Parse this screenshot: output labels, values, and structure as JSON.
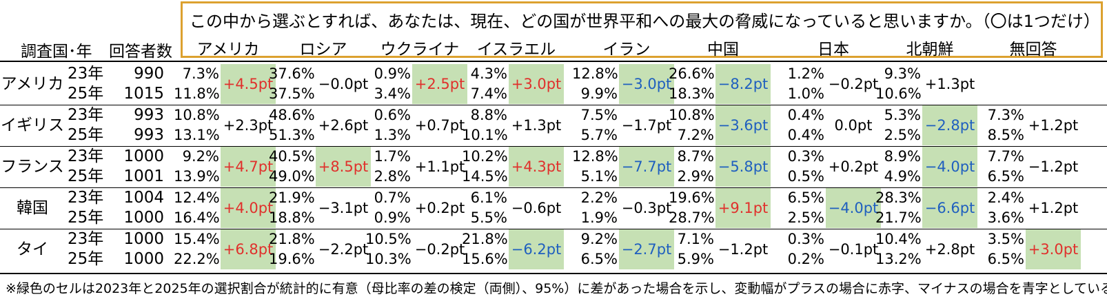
{
  "question": "この中から選ぶとすれば、あなたは、現在、どの国が世界平和への最大の脅威になっていると思いますか。（〇は1つだけ）",
  "headers": {
    "country_year": "調査国･年",
    "respondents": "回答者数"
  },
  "columns": [
    "アメリカ",
    "ロシア",
    "ウクライナ",
    "イスラエル",
    "イラン",
    "中国",
    "日本",
    "北朝鮮",
    "無回答"
  ],
  "rows": [
    {
      "country": "アメリカ",
      "years": [
        "23年",
        "25年"
      ],
      "counts": [
        "990",
        "1015"
      ],
      "cells": [
        {
          "v23": "7.3%",
          "v25": "11.8%",
          "change": "+4.5pt",
          "sig": true,
          "dir": "up"
        },
        {
          "v23": "37.6%",
          "v25": "37.5%",
          "change": "−0.0pt",
          "sig": false,
          "dir": "neutral"
        },
        {
          "v23": "0.9%",
          "v25": "3.4%",
          "change": "+2.5pt",
          "sig": true,
          "dir": "up"
        },
        {
          "v23": "4.3%",
          "v25": "7.4%",
          "change": "+3.0pt",
          "sig": true,
          "dir": "up"
        },
        {
          "v23": "12.8%",
          "v25": "9.9%",
          "change": "−3.0pt",
          "sig": true,
          "dir": "down"
        },
        {
          "v23": "26.6%",
          "v25": "18.3%",
          "change": "−8.2pt",
          "sig": true,
          "dir": "down"
        },
        {
          "v23": "1.2%",
          "v25": "1.0%",
          "change": "−0.2pt",
          "sig": false,
          "dir": "neutral"
        },
        {
          "v23": "9.3%",
          "v25": "10.6%",
          "change": "+1.3pt",
          "sig": false,
          "dir": "neutral"
        },
        {
          "v23": "",
          "v25": "",
          "change": "",
          "sig": false,
          "dir": "neutral"
        }
      ]
    },
    {
      "country": "イギリス",
      "years": [
        "23年",
        "25年"
      ],
      "counts": [
        "993",
        "993"
      ],
      "cells": [
        {
          "v23": "10.8%",
          "v25": "13.1%",
          "change": "+2.3pt",
          "sig": false,
          "dir": "neutral"
        },
        {
          "v23": "48.6%",
          "v25": "51.3%",
          "change": "+2.6pt",
          "sig": false,
          "dir": "neutral"
        },
        {
          "v23": "0.6%",
          "v25": "1.3%",
          "change": "+0.7pt",
          "sig": false,
          "dir": "neutral"
        },
        {
          "v23": "8.8%",
          "v25": "10.1%",
          "change": "+1.3pt",
          "sig": false,
          "dir": "neutral"
        },
        {
          "v23": "7.5%",
          "v25": "5.7%",
          "change": "−1.7pt",
          "sig": false,
          "dir": "neutral"
        },
        {
          "v23": "10.8%",
          "v25": "7.2%",
          "change": "−3.6pt",
          "sig": true,
          "dir": "down"
        },
        {
          "v23": "0.4%",
          "v25": "0.4%",
          "change": "0.0pt",
          "sig": false,
          "dir": "neutral"
        },
        {
          "v23": "5.3%",
          "v25": "2.5%",
          "change": "−2.8pt",
          "sig": true,
          "dir": "down"
        },
        {
          "v23": "7.3%",
          "v25": "8.5%",
          "change": "+1.2pt",
          "sig": false,
          "dir": "neutral"
        }
      ]
    },
    {
      "country": "フランス",
      "years": [
        "23年",
        "25年"
      ],
      "counts": [
        "1000",
        "1001"
      ],
      "cells": [
        {
          "v23": "9.2%",
          "v25": "13.9%",
          "change": "+4.7pt",
          "sig": true,
          "dir": "up"
        },
        {
          "v23": "40.5%",
          "v25": "49.0%",
          "change": "+8.5pt",
          "sig": true,
          "dir": "up"
        },
        {
          "v23": "1.7%",
          "v25": "2.8%",
          "change": "+1.1pt",
          "sig": false,
          "dir": "neutral"
        },
        {
          "v23": "10.2%",
          "v25": "14.5%",
          "change": "+4.3pt",
          "sig": true,
          "dir": "up"
        },
        {
          "v23": "12.8%",
          "v25": "5.1%",
          "change": "−7.7pt",
          "sig": true,
          "dir": "down"
        },
        {
          "v23": "8.7%",
          "v25": "2.9%",
          "change": "−5.8pt",
          "sig": true,
          "dir": "down"
        },
        {
          "v23": "0.3%",
          "v25": "0.5%",
          "change": "+0.2pt",
          "sig": false,
          "dir": "neutral"
        },
        {
          "v23": "8.9%",
          "v25": "4.9%",
          "change": "−4.0pt",
          "sig": true,
          "dir": "down"
        },
        {
          "v23": "7.7%",
          "v25": "6.5%",
          "change": "−1.2pt",
          "sig": false,
          "dir": "neutral"
        }
      ]
    },
    {
      "country": "韓国",
      "years": [
        "23年",
        "25年"
      ],
      "counts": [
        "1004",
        "1000"
      ],
      "cells": [
        {
          "v23": "12.4%",
          "v25": "16.4%",
          "change": "+4.0pt",
          "sig": true,
          "dir": "up"
        },
        {
          "v23": "21.9%",
          "v25": "18.8%",
          "change": "−3.1pt",
          "sig": false,
          "dir": "neutral"
        },
        {
          "v23": "0.7%",
          "v25": "0.9%",
          "change": "+0.2pt",
          "sig": false,
          "dir": "neutral"
        },
        {
          "v23": "6.1%",
          "v25": "5.5%",
          "change": "−0.6pt",
          "sig": false,
          "dir": "neutral"
        },
        {
          "v23": "2.2%",
          "v25": "1.9%",
          "change": "−0.3pt",
          "sig": false,
          "dir": "neutral"
        },
        {
          "v23": "19.6%",
          "v25": "28.7%",
          "change": "+9.1pt",
          "sig": true,
          "dir": "up"
        },
        {
          "v23": "6.5%",
          "v25": "2.5%",
          "change": "−4.0pt",
          "sig": true,
          "dir": "down"
        },
        {
          "v23": "28.3%",
          "v25": "21.7%",
          "change": "−6.6pt",
          "sig": true,
          "dir": "down"
        },
        {
          "v23": "2.4%",
          "v25": "3.6%",
          "change": "+1.2pt",
          "sig": false,
          "dir": "neutral"
        }
      ]
    },
    {
      "country": "タイ",
      "years": [
        "23年",
        "25年"
      ],
      "counts": [
        "1000",
        "1000"
      ],
      "cells": [
        {
          "v23": "15.4%",
          "v25": "22.2%",
          "change": "+6.8pt",
          "sig": true,
          "dir": "up"
        },
        {
          "v23": "21.8%",
          "v25": "19.6%",
          "change": "−2.2pt",
          "sig": false,
          "dir": "neutral"
        },
        {
          "v23": "10.5%",
          "v25": "10.3%",
          "change": "−0.2pt",
          "sig": false,
          "dir": "neutral"
        },
        {
          "v23": "21.8%",
          "v25": "15.6%",
          "change": "−6.2pt",
          "sig": true,
          "dir": "down"
        },
        {
          "v23": "9.2%",
          "v25": "6.5%",
          "change": "−2.7pt",
          "sig": true,
          "dir": "down"
        },
        {
          "v23": "7.1%",
          "v25": "5.9%",
          "change": "−1.2pt",
          "sig": false,
          "dir": "neutral"
        },
        {
          "v23": "0.3%",
          "v25": "0.2%",
          "change": "−0.1pt",
          "sig": false,
          "dir": "neutral"
        },
        {
          "v23": "10.4%",
          "v25": "13.2%",
          "change": "+2.8pt",
          "sig": false,
          "dir": "neutral"
        },
        {
          "v23": "3.5%",
          "v25": "6.5%",
          "change": "+3.0pt",
          "sig": true,
          "dir": "up"
        }
      ]
    }
  ],
  "footnote": "※緑色のセルは2023年と2025年の選択割合が統計的に有意（母比率の差の検定（両側）、95%）に差があった場合を示し、変動幅がプラスの場合に赤字、マイナスの場合を青字としている。",
  "colors": {
    "significant_fill": "#c6e0b4",
    "increase_text": "#e0302c",
    "decrease_text": "#1f5fbf",
    "question_border": "#dca12f"
  }
}
